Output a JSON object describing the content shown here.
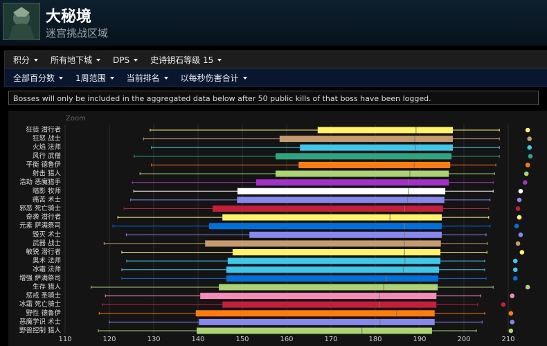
{
  "header": {
    "title": "大秘境",
    "subtitle": "迷宫挑战区域"
  },
  "menu": [
    "积分",
    "所有地下城",
    "DPS",
    "史诗钥石等级 15"
  ],
  "filters": [
    "全部百分数",
    "1周范围",
    "当前排名",
    "以每秒伤害合计"
  ],
  "notice": "Bosses will only be included in the aggregated data below after 50 public kills of that boss have been logged.",
  "chart_data": {
    "type": "box",
    "zoom_label": "Zoom",
    "categories": [
      "狂徒 潜行者",
      "狂怒 战士",
      "火焰 法师",
      "风行 武僧",
      "平衡 德鲁伊",
      "射击 猎人",
      "浩劫 恶魔猎手",
      "暗影 牧师",
      "痛苦 术士",
      "邪恶 死亡骑士",
      "奇袭 潜行者",
      "元素 萨满祭司",
      "毁灭 术士",
      "武器 战士",
      "敏锐 潜行者",
      "奥术 法师",
      "冰霜 法师",
      "增强 萨满祭司",
      "生存 猎人",
      "惩戒 圣骑士",
      "冰霜 死亡骑士",
      "野性 德鲁伊",
      "恶魔学识 术士",
      "野兽控制 猎人"
    ],
    "colors": [
      "#fff468",
      "#c69b6d",
      "#3fc7eb",
      "#2fa57f",
      "#ff7c0a",
      "#aad372",
      "#a330c9",
      "#ffffff",
      "#8788ee",
      "#c41e3a",
      "#fff468",
      "#0070dd",
      "#8788ee",
      "#c69b6d",
      "#fff468",
      "#3fc7eb",
      "#3fc7eb",
      "#0070dd",
      "#aad372",
      "#f48cba",
      "#c41e3a",
      "#ff7c0a",
      "#8788ee",
      "#aad372"
    ],
    "boxes": [
      {
        "low": 129.2,
        "q1": 167.0,
        "median": 189.2,
        "q3": 197.5,
        "high": 208.0,
        "outlier": 214.4
      },
      {
        "low": 127.7,
        "q1": 158.4,
        "median": 188.9,
        "q3": 197.5,
        "high": 208.0,
        "outlier": 214.8
      },
      {
        "low": 129.5,
        "q1": 163.0,
        "median": 189.1,
        "q3": 197.5,
        "high": 208.0,
        "outlier": 214.8
      },
      {
        "low": 125.6,
        "q1": 157.5,
        "median": 188.6,
        "q3": 197.2,
        "high": 208.0,
        "outlier": 215.0
      },
      {
        "low": 129.5,
        "q1": 162.7,
        "median": 188.8,
        "q3": 196.9,
        "high": 207.2,
        "outlier": 214.4
      },
      {
        "low": 126.9,
        "q1": 157.5,
        "median": 187.8,
        "q3": 196.6,
        "high": 206.9,
        "outlier": 214.1
      },
      {
        "low": 125.2,
        "q1": 153.1,
        "median": 187.5,
        "q3": 196.6,
        "high": 206.6,
        "outlier": 213.8
      },
      {
        "low": 125.5,
        "q1": 148.9,
        "median": 187.5,
        "q3": 195.8,
        "high": 206.6,
        "outlier": 212.8
      },
      {
        "low": 124.8,
        "q1": 148.8,
        "median": 187.3,
        "q3": 195.6,
        "high": 205.9,
        "outlier": 212.5
      },
      {
        "low": 123.3,
        "q1": 143.3,
        "median": 186.6,
        "q3": 195.3,
        "high": 205.6,
        "outlier": 212.2
      },
      {
        "low": 121.9,
        "q1": 145.5,
        "median": 183.3,
        "q3": 195.0,
        "high": 205.6,
        "outlier": 212.5
      },
      {
        "low": 120.8,
        "q1": 142.5,
        "median": 186.6,
        "q3": 195.0,
        "high": 205.9,
        "outlier": 211.9
      },
      {
        "low": 123.8,
        "q1": 151.6,
        "median": 186.6,
        "q3": 195.0,
        "high": 205.0,
        "outlier": 212.8
      },
      {
        "low": 118.8,
        "q1": 141.6,
        "median": 186.6,
        "q3": 194.8,
        "high": 205.3,
        "outlier": 212.2
      },
      {
        "low": 122.8,
        "q1": 147.8,
        "median": 186.6,
        "q3": 194.7,
        "high": 205.2,
        "outlier": 213.1
      },
      {
        "low": 123.9,
        "q1": 146.7,
        "median": 186.7,
        "q3": 194.7,
        "high": 204.7,
        "outlier": 211.6
      },
      {
        "low": 122.8,
        "q1": 146.4,
        "median": 186.3,
        "q3": 194.4,
        "high": 204.7,
        "outlier": 211.6
      },
      {
        "low": 122.8,
        "q1": 146.4,
        "median": 182.5,
        "q3": 194.2,
        "high": 205.0,
        "outlier": 211.6
      },
      {
        "low": 115.9,
        "q1": 144.7,
        "median": 181.9,
        "q3": 194.1,
        "high": 206.6,
        "outlier": 214.4
      },
      {
        "low": 119.1,
        "q1": 140.5,
        "median": 180.9,
        "q3": 193.8,
        "high": 203.8,
        "outlier": 210.9
      },
      {
        "low": 118.4,
        "q1": 145.5,
        "median": 180.9,
        "q3": 193.8,
        "high": 203.1,
        "outlier": 208.9
      },
      {
        "low": 117.7,
        "q1": 139.5,
        "median": 184.8,
        "q3": 193.4,
        "high": 204.7,
        "outlier": 210.6
      },
      {
        "low": 120.0,
        "q1": 140.2,
        "median": 181.1,
        "q3": 193.4,
        "high": 204.1,
        "outlier": 210.9
      },
      {
        "low": 117.5,
        "q1": 139.7,
        "median": 177.0,
        "q3": 192.8,
        "high": 202.8,
        "outlier": 210.6
      }
    ],
    "xlim": [
      110,
      216
    ],
    "xticks": [
      110,
      120,
      130,
      140,
      150,
      160,
      170,
      180,
      190,
      200,
      210
    ],
    "grid": true
  }
}
